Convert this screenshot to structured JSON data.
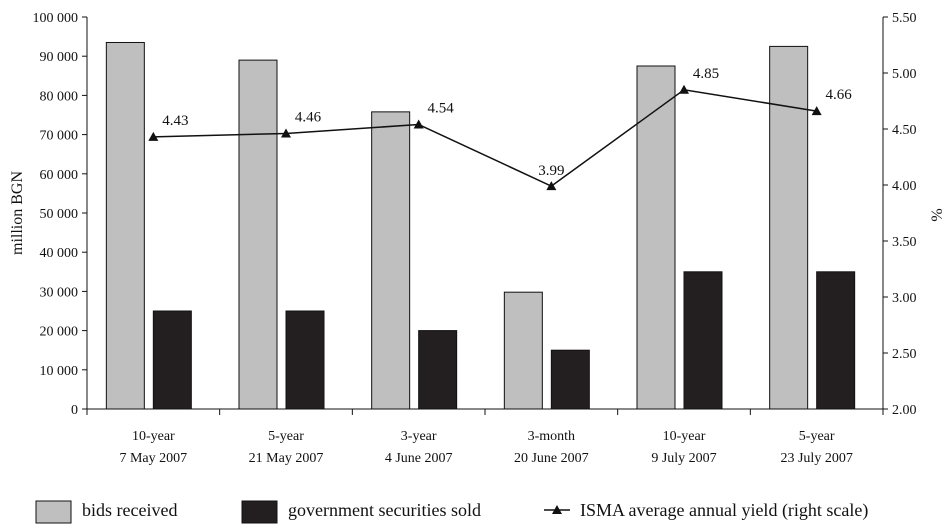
{
  "chart_data": {
    "type": "bar",
    "categories": [
      [
        "10-year",
        "7 May 2007"
      ],
      [
        "5-year",
        "21 May 2007"
      ],
      [
        "3-year",
        "4 June 2007"
      ],
      [
        "3-month",
        "20 June 2007"
      ],
      [
        "10-year",
        "9 July 2007"
      ],
      [
        "5-year",
        "23 July 2007"
      ]
    ],
    "series": [
      {
        "name": "bids received",
        "type": "bar",
        "axis": "left",
        "color": "#bfbfbf",
        "values": [
          93500,
          89000,
          75800,
          29800,
          87500,
          92500
        ]
      },
      {
        "name": "government securities sold",
        "type": "bar",
        "axis": "left",
        "color": "#231f20",
        "values": [
          25000,
          25000,
          20000,
          15000,
          35000,
          35000
        ]
      },
      {
        "name": "ISMA average annual yield (right scale)",
        "type": "line",
        "axis": "right",
        "color": "#111111",
        "values": [
          4.43,
          4.46,
          4.54,
          3.99,
          4.85,
          4.66
        ],
        "labels": [
          "4.43",
          "4.46",
          "4.54",
          "3.99",
          "4.85",
          "4.66"
        ]
      }
    ],
    "ylabel": "million BGN",
    "ylabel_right": "%",
    "ylim": [
      0,
      100000
    ],
    "ylim_right": [
      2.0,
      5.5
    ],
    "yticks": [
      "0",
      "10 000",
      "20 000",
      "30 000",
      "40 000",
      "50 000",
      "60 000",
      "70 000",
      "80 000",
      "90 000",
      "100 000"
    ],
    "yticks_right": [
      "2.00",
      "2.50",
      "3.00",
      "3.50",
      "4.00",
      "4.50",
      "5.00",
      "5.50"
    ],
    "grid": false,
    "legend_position": "bottom"
  }
}
